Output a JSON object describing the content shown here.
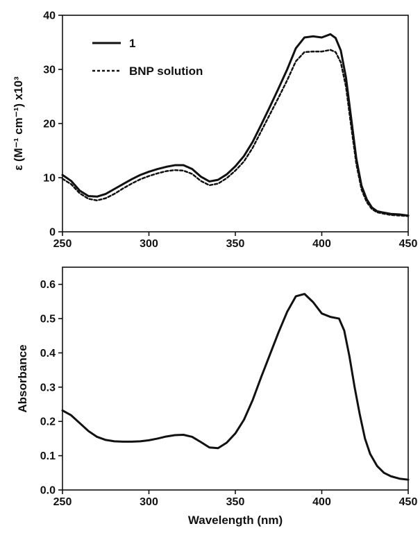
{
  "chart_data": [
    {
      "type": "line",
      "xlabel": "",
      "ylabel": "ε (M⁻¹ cm⁻¹) x10³",
      "xlim": [
        250,
        450
      ],
      "ylim": [
        0,
        40
      ],
      "xticks": [
        250,
        300,
        350,
        400,
        450
      ],
      "yticks": [
        0,
        10,
        20,
        30,
        40
      ],
      "legend": "top-left",
      "grid": false,
      "series": [
        {
          "name": "1",
          "style": "solid",
          "x": [
            250,
            255,
            260,
            265,
            270,
            275,
            280,
            285,
            290,
            295,
            300,
            305,
            310,
            315,
            320,
            325,
            330,
            335,
            340,
            345,
            350,
            355,
            360,
            365,
            370,
            375,
            380,
            385,
            390,
            395,
            400,
            405,
            408,
            411,
            414,
            417,
            420,
            423,
            426,
            429,
            432,
            435,
            440,
            445,
            450
          ],
          "values": [
            10.5,
            9.4,
            7.6,
            6.6,
            6.5,
            7.0,
            7.9,
            8.8,
            9.7,
            10.5,
            11.1,
            11.6,
            12.0,
            12.3,
            12.3,
            11.6,
            10.2,
            9.3,
            9.6,
            10.6,
            12.1,
            14.0,
            16.6,
            19.8,
            23.1,
            26.5,
            30.0,
            33.9,
            35.9,
            36.1,
            35.9,
            36.5,
            35.8,
            33.5,
            28.5,
            21.0,
            13.5,
            8.5,
            6.0,
            4.5,
            3.8,
            3.6,
            3.3,
            3.2,
            3.0
          ]
        },
        {
          "name": "BNP solution",
          "style": "dashed",
          "x": [
            250,
            255,
            260,
            265,
            270,
            275,
            280,
            285,
            290,
            295,
            300,
            305,
            310,
            315,
            320,
            325,
            330,
            335,
            340,
            345,
            350,
            355,
            360,
            365,
            370,
            375,
            380,
            385,
            390,
            395,
            400,
            405,
            408,
            411,
            414,
            417,
            420,
            423,
            426,
            429,
            432,
            435,
            440,
            445,
            450
          ],
          "values": [
            9.8,
            8.8,
            7.1,
            6.1,
            5.8,
            6.2,
            7.0,
            8.0,
            8.9,
            9.7,
            10.3,
            10.8,
            11.2,
            11.4,
            11.3,
            10.7,
            9.4,
            8.6,
            8.9,
            9.9,
            11.3,
            13.0,
            15.5,
            18.6,
            21.7,
            24.8,
            28.0,
            31.5,
            33.2,
            33.3,
            33.3,
            33.6,
            33.2,
            31.3,
            26.8,
            19.5,
            12.5,
            7.8,
            5.5,
            4.2,
            3.6,
            3.4,
            3.1,
            3.0,
            2.9
          ]
        }
      ]
    },
    {
      "type": "line",
      "xlabel": "Wavelength (nm)",
      "ylabel": "Absorbance",
      "xlim": [
        250,
        450
      ],
      "ylim": [
        0,
        0.65
      ],
      "xticks": [
        250,
        300,
        350,
        400,
        450
      ],
      "yticks": [
        0.0,
        0.1,
        0.2,
        0.3,
        0.4,
        0.5,
        0.6
      ],
      "grid": false,
      "series": [
        {
          "style": "solid",
          "x": [
            250,
            255,
            260,
            265,
            270,
            275,
            280,
            285,
            290,
            295,
            300,
            305,
            310,
            315,
            320,
            325,
            330,
            335,
            340,
            345,
            350,
            355,
            360,
            365,
            370,
            375,
            380,
            385,
            390,
            395,
            400,
            405,
            410,
            413,
            416,
            419,
            422,
            425,
            428,
            432,
            436,
            440,
            445,
            450
          ],
          "values": [
            0.232,
            0.218,
            0.195,
            0.172,
            0.155,
            0.146,
            0.142,
            0.141,
            0.141,
            0.142,
            0.145,
            0.15,
            0.156,
            0.16,
            0.161,
            0.155,
            0.14,
            0.124,
            0.122,
            0.138,
            0.165,
            0.205,
            0.262,
            0.33,
            0.395,
            0.46,
            0.52,
            0.565,
            0.572,
            0.548,
            0.515,
            0.505,
            0.5,
            0.465,
            0.39,
            0.3,
            0.22,
            0.15,
            0.105,
            0.07,
            0.05,
            0.04,
            0.033,
            0.03
          ]
        }
      ]
    }
  ],
  "yticks_text": {
    "top": [
      "0",
      "10",
      "20",
      "30",
      "40"
    ],
    "bottom": [
      "0.0",
      "0.1",
      "0.2",
      "0.3",
      "0.4",
      "0.5",
      "0.6"
    ]
  },
  "xticks_text": [
    "250",
    "300",
    "350",
    "400",
    "450"
  ]
}
